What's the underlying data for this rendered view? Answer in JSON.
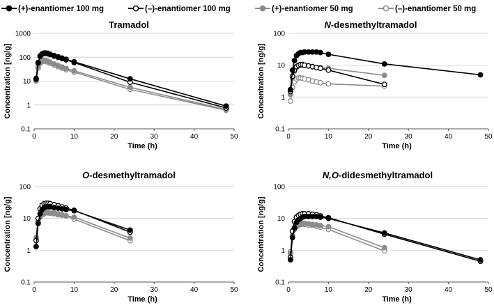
{
  "chart_data": {
    "type": "line",
    "x_scale": "linear",
    "y_scale": "log",
    "legend": {
      "position": "top",
      "entries": [
        {
          "id": "pos100",
          "label": "(+)-enantiomer 100 mg",
          "color": "#000000",
          "marker": "filled"
        },
        {
          "id": "neg100",
          "label": "(–)-enantiomer 100 mg",
          "color": "#000000",
          "marker": "open"
        },
        {
          "id": "pos50",
          "label": "(+)-enantiomer 50 mg",
          "color": "#8c8c8c",
          "marker": "filled"
        },
        {
          "id": "neg50",
          "label": "(–)-enantiomer 50 mg",
          "color": "#8c8c8c",
          "marker": "open"
        }
      ]
    },
    "panels": [
      {
        "title_prefix": "",
        "title_rest": "Tramadol",
        "xlabel": "Time (h)",
        "ylabel": "Concentration [ng/g]",
        "xlim": [
          0,
          50
        ],
        "xticks": [
          "0",
          "10",
          "20",
          "30",
          "40",
          "50"
        ],
        "ylim": [
          0.1,
          1000
        ],
        "yticks": [
          "0.1",
          "1",
          "10",
          "100",
          "1000"
        ],
        "series": [
          {
            "id": "pos100",
            "x": [
              0.5,
              1,
              1.5,
              2,
              2.5,
              3,
              3.5,
              4,
              5,
              6,
              7,
              8,
              10,
              24,
              48
            ],
            "y": [
              13,
              60,
              115,
              140,
              150,
              150,
              145,
              135,
              118,
              105,
              92,
              82,
              65,
              12.5,
              0.9
            ]
          },
          {
            "id": "neg100",
            "x": [
              0.5,
              1,
              1.5,
              2,
              2.5,
              3,
              3.5,
              4,
              5,
              6,
              7,
              8,
              10,
              24,
              48
            ],
            "y": [
              12,
              58,
              110,
              135,
              145,
              145,
              140,
              130,
              112,
              100,
              88,
              78,
              60,
              9,
              0.75
            ]
          },
          {
            "id": "pos50",
            "x": [
              0.5,
              1,
              1.5,
              2,
              2.5,
              3,
              3.5,
              4,
              5,
              6,
              7,
              8,
              10,
              24,
              48
            ],
            "y": [
              11,
              40,
              62,
              72,
              75,
              73,
              68,
              62,
              52,
              45,
              39,
              34,
              27,
              5.5,
              0.65
            ]
          },
          {
            "id": "neg50",
            "x": [
              0.5,
              1,
              1.5,
              2,
              2.5,
              3,
              3.5,
              4,
              5,
              6,
              7,
              8,
              10,
              24,
              48
            ],
            "y": [
              10,
              35,
              55,
              65,
              68,
              66,
              62,
              56,
              47,
              40,
              35,
              30,
              24,
              4.5,
              0.6
            ]
          }
        ]
      },
      {
        "title_prefix": "N",
        "title_rest": "-desmethyltramadol",
        "xlabel": "Time (h)",
        "ylabel": "Concentration [ng/g]",
        "xlim": [
          0,
          50
        ],
        "xticks": [
          "0",
          "10",
          "20",
          "30",
          "40",
          "50"
        ],
        "ylim": [
          0.1,
          100
        ],
        "yticks": [
          "0.1",
          "1",
          "10",
          "100"
        ],
        "series": [
          {
            "id": "pos100",
            "x": [
              0.5,
              1,
              1.5,
              2,
              2.5,
              3,
              3.5,
              4,
              5,
              6,
              7,
              8,
              10,
              24,
              48
            ],
            "y": [
              1.7,
              7,
              14,
              20,
              23,
              25,
              25,
              26,
              26,
              26,
              26,
              25,
              22,
              11,
              5
            ]
          },
          {
            "id": "neg100",
            "x": [
              0.5,
              1,
              1.5,
              2,
              2.5,
              3,
              3.5,
              4,
              5,
              6,
              7,
              8,
              10,
              24
            ],
            "y": [
              1.5,
              4.5,
              7,
              9,
              10,
              10.5,
              10.5,
              10,
              9.5,
              9,
              8.5,
              8,
              7,
              2.5
            ]
          },
          {
            "id": "pos50",
            "x": [
              0.5,
              1,
              1.5,
              2,
              2.5,
              3,
              3.5,
              4,
              5,
              6,
              7,
              8,
              10,
              24
            ],
            "y": [
              1.2,
              4,
              6.5,
              8.5,
              9.5,
              10,
              10,
              10,
              9.5,
              9,
              8.5,
              8.5,
              8,
              4.8
            ]
          },
          {
            "id": "neg50",
            "x": [
              0.5,
              1,
              1.5,
              2,
              2.5,
              3,
              3.5,
              4,
              5,
              6,
              7,
              8,
              10,
              24
            ],
            "y": [
              0.75,
              2,
              3,
              3.7,
              4,
              4,
              3.9,
              3.7,
              3.5,
              3.2,
              3,
              2.8,
              2.6,
              2.2
            ]
          }
        ]
      },
      {
        "title_prefix": "O",
        "title_rest": "-desmethyltramadol",
        "xlabel": "Time (h)",
        "ylabel": "Concentration [ng/g]",
        "xlim": [
          0,
          50
        ],
        "xticks": [
          "0",
          "10",
          "20",
          "30",
          "40",
          "50"
        ],
        "ylim": [
          0.1,
          100
        ],
        "yticks": [
          "0.1",
          "1",
          "10",
          "100"
        ],
        "series": [
          {
            "id": "pos100",
            "x": [
              0.5,
              1,
              1.5,
              2,
              2.5,
              3,
              3.5,
              4,
              5,
              6,
              7,
              8,
              10,
              24
            ],
            "y": [
              1.3,
              7,
              14,
              19,
              22,
              23,
              23.5,
              23.5,
              22,
              21,
              20,
              19,
              17.5,
              4.3
            ]
          },
          {
            "id": "neg100",
            "x": [
              0.5,
              1,
              1.5,
              2,
              2.5,
              3,
              3.5,
              4,
              5,
              6,
              7,
              8,
              10,
              24
            ],
            "y": [
              2,
              10,
              20,
              26,
              29,
              30,
              30,
              29,
              27,
              25,
              23,
              21,
              18,
              3.7
            ]
          },
          {
            "id": "pos50",
            "x": [
              0.5,
              1,
              1.5,
              2,
              2.5,
              3,
              3.5,
              4,
              5,
              6,
              7,
              8,
              10,
              24
            ],
            "y": [
              2.3,
              7,
              11,
              13,
              14,
              15,
              15,
              14.5,
              14,
              13,
              12.5,
              12,
              11,
              2.4
            ]
          },
          {
            "id": "neg50",
            "x": [
              0.5,
              1,
              1.5,
              2,
              2.5,
              3,
              3.5,
              4,
              5,
              6,
              7,
              8,
              10,
              24
            ],
            "y": [
              2.5,
              8,
              13,
              16,
              17,
              17.5,
              17,
              16.5,
              15,
              14,
              13,
              12,
              9.5,
              2
            ]
          }
        ]
      },
      {
        "title_prefix": "N,O",
        "title_rest": "-didesmethyltramadol",
        "xlabel": "Time (h)",
        "ylabel": "Concentration [ng/g]",
        "xlim": [
          0,
          50
        ],
        "xticks": [
          "0",
          "10",
          "20",
          "30",
          "40",
          "50"
        ],
        "ylim": [
          0.1,
          100
        ],
        "yticks": [
          "0.1",
          "1",
          "10",
          "100"
        ],
        "series": [
          {
            "id": "pos100",
            "x": [
              0.5,
              1,
              1.5,
              2,
              2.5,
              3,
              3.5,
              4,
              5,
              6,
              7,
              8,
              10,
              24,
              48
            ],
            "y": [
              0.5,
              2.5,
              5,
              7.5,
              9,
              10,
              11,
              11.5,
              11.5,
              11.5,
              11.5,
              11,
              10,
              3.5,
              0.5
            ]
          },
          {
            "id": "neg100",
            "x": [
              0.5,
              1,
              1.5,
              2,
              2.5,
              3,
              3.5,
              4,
              5,
              6,
              7,
              8,
              10,
              24,
              48
            ],
            "y": [
              0.6,
              4,
              8,
              11,
              12.5,
              13.5,
              14,
              14,
              14,
              13.5,
              13,
              12,
              10.5,
              3.2,
              0.45
            ]
          },
          {
            "id": "pos50",
            "x": [
              0.5,
              1,
              1.5,
              2,
              2.5,
              3,
              3.5,
              4,
              5,
              6,
              7,
              8,
              10,
              24
            ],
            "y": [
              0.8,
              3,
              5,
              6,
              6.5,
              7,
              7,
              7,
              6.8,
              6.5,
              6.3,
              6,
              5.5,
              1.2
            ]
          },
          {
            "id": "neg50",
            "x": [
              0.5,
              1,
              1.5,
              2,
              2.5,
              3,
              3.5,
              4,
              5,
              6,
              7,
              8,
              10,
              24
            ],
            "y": [
              0.9,
              2.7,
              4.5,
              5.5,
              6,
              6.5,
              6.5,
              6.5,
              6.2,
              6,
              5.7,
              5.3,
              4.5,
              0.95
            ]
          }
        ]
      }
    ]
  }
}
